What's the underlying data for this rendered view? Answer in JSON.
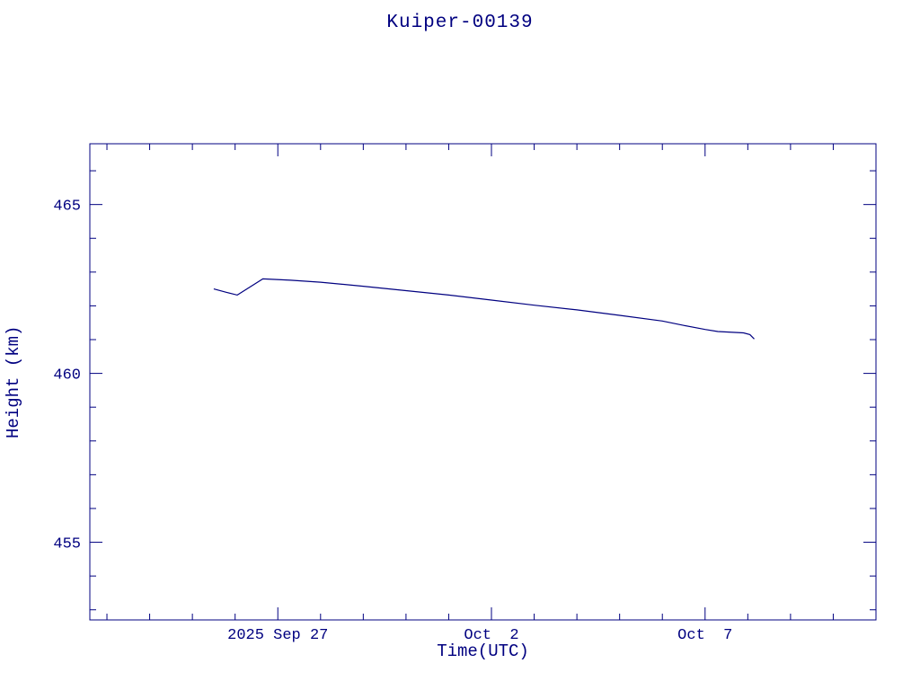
{
  "title": "Kuiper-00139",
  "colors": {
    "line": "#000080",
    "axis": "#000080",
    "text": "#000080",
    "background": "#ffffff"
  },
  "chart_data": {
    "type": "line",
    "title": "Kuiper-00139",
    "xlabel": "Time(UTC)",
    "ylabel": "Height (km)",
    "x_domain_days": [
      -4.4,
      14.0
    ],
    "ylim": [
      452.7,
      466.8
    ],
    "x_major_ticks": [
      {
        "day": 0,
        "label": "2025 Sep 27"
      },
      {
        "day": 5,
        "label": "Oct  2"
      },
      {
        "day": 10,
        "label": "Oct  7"
      }
    ],
    "x_minor_tick_interval_days": 1,
    "y_major_ticks": [
      455,
      460,
      465
    ],
    "y_minor_tick_interval": 1,
    "grid": false,
    "legend": "none",
    "series": [
      {
        "name": "height_km",
        "points": [
          [
            -1.5,
            462.5
          ],
          [
            -1.2,
            462.4
          ],
          [
            -0.95,
            462.32
          ],
          [
            -0.35,
            462.8
          ],
          [
            0.3,
            462.76
          ],
          [
            1.0,
            462.7
          ],
          [
            2.0,
            462.58
          ],
          [
            3.0,
            462.45
          ],
          [
            4.0,
            462.32
          ],
          [
            5.0,
            462.17
          ],
          [
            6.0,
            462.02
          ],
          [
            7.0,
            461.88
          ],
          [
            8.0,
            461.72
          ],
          [
            9.0,
            461.55
          ],
          [
            9.5,
            461.42
          ],
          [
            10.0,
            461.3
          ],
          [
            10.3,
            461.24
          ],
          [
            10.9,
            461.2
          ],
          [
            11.05,
            461.15
          ],
          [
            11.15,
            461.02
          ]
        ]
      }
    ]
  }
}
